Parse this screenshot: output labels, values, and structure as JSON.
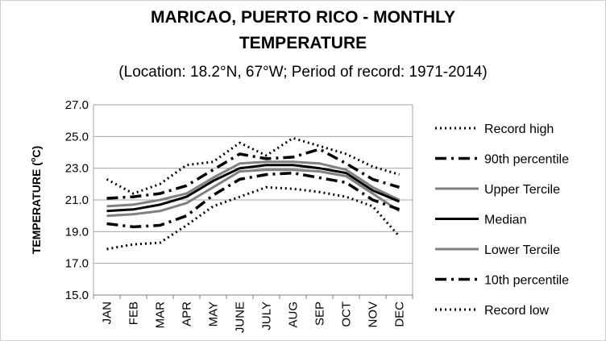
{
  "chart_data": {
    "type": "line",
    "title_lines": [
      "MARICAO, PUERTO RICO - MONTHLY",
      "TEMPERATURE"
    ],
    "subtitle": "(Location: 18.2°N, 67°W; Period of record: 1971-2014)",
    "ylabel_prefix": "TEMPERATURE (",
    "ylabel_sup": "o",
    "ylabel_suffix": "C)",
    "xlabel": "",
    "ylim": [
      15.0,
      27.0
    ],
    "yticks": [
      "15.0",
      "17.0",
      "19.0",
      "21.0",
      "23.0",
      "25.0",
      "27.0"
    ],
    "grid": true,
    "legend_position": "right",
    "categories": [
      "JAN",
      "FEB",
      "MAR",
      "APR",
      "MAY",
      "JUNE",
      "JULY",
      "AUG",
      "SEP",
      "OCT",
      "NOV",
      "DEC"
    ],
    "series": [
      {
        "name": "Record high",
        "style": "dotted",
        "color": "#000000",
        "values": [
          22.3,
          21.4,
          22.0,
          23.2,
          23.4,
          24.6,
          23.8,
          24.9,
          24.4,
          23.9,
          23.1,
          22.6
        ]
      },
      {
        "name": "90th percentile",
        "style": "dashdot",
        "color": "#000000",
        "values": [
          21.1,
          21.2,
          21.4,
          21.9,
          22.9,
          23.9,
          23.6,
          23.7,
          24.2,
          23.3,
          22.3,
          21.8
        ]
      },
      {
        "name": "Upper Tercile",
        "style": "solid",
        "color": "#808080",
        "values": [
          20.6,
          20.7,
          21.0,
          21.4,
          22.4,
          23.3,
          23.4,
          23.4,
          23.3,
          22.9,
          21.8,
          21.0
        ]
      },
      {
        "name": "Median",
        "style": "solid",
        "color": "#000000",
        "values": [
          20.3,
          20.4,
          20.7,
          21.2,
          22.2,
          23.0,
          23.2,
          23.2,
          23.0,
          22.7,
          21.6,
          20.9
        ]
      },
      {
        "name": "Lower Tercile",
        "style": "solid",
        "color": "#808080",
        "values": [
          20.0,
          20.1,
          20.3,
          20.8,
          21.8,
          22.8,
          22.9,
          22.9,
          22.8,
          22.5,
          21.4,
          20.3
        ]
      },
      {
        "name": "10th percentile",
        "style": "dashdot",
        "color": "#000000",
        "values": [
          19.5,
          19.3,
          19.4,
          20.0,
          21.3,
          22.3,
          22.6,
          22.7,
          22.4,
          22.1,
          21.0,
          20.4
        ]
      },
      {
        "name": "Record low",
        "style": "dotted",
        "color": "#000000",
        "values": [
          17.9,
          18.2,
          18.3,
          19.4,
          20.6,
          21.2,
          21.8,
          21.7,
          21.5,
          21.2,
          20.6,
          18.7
        ]
      }
    ]
  }
}
